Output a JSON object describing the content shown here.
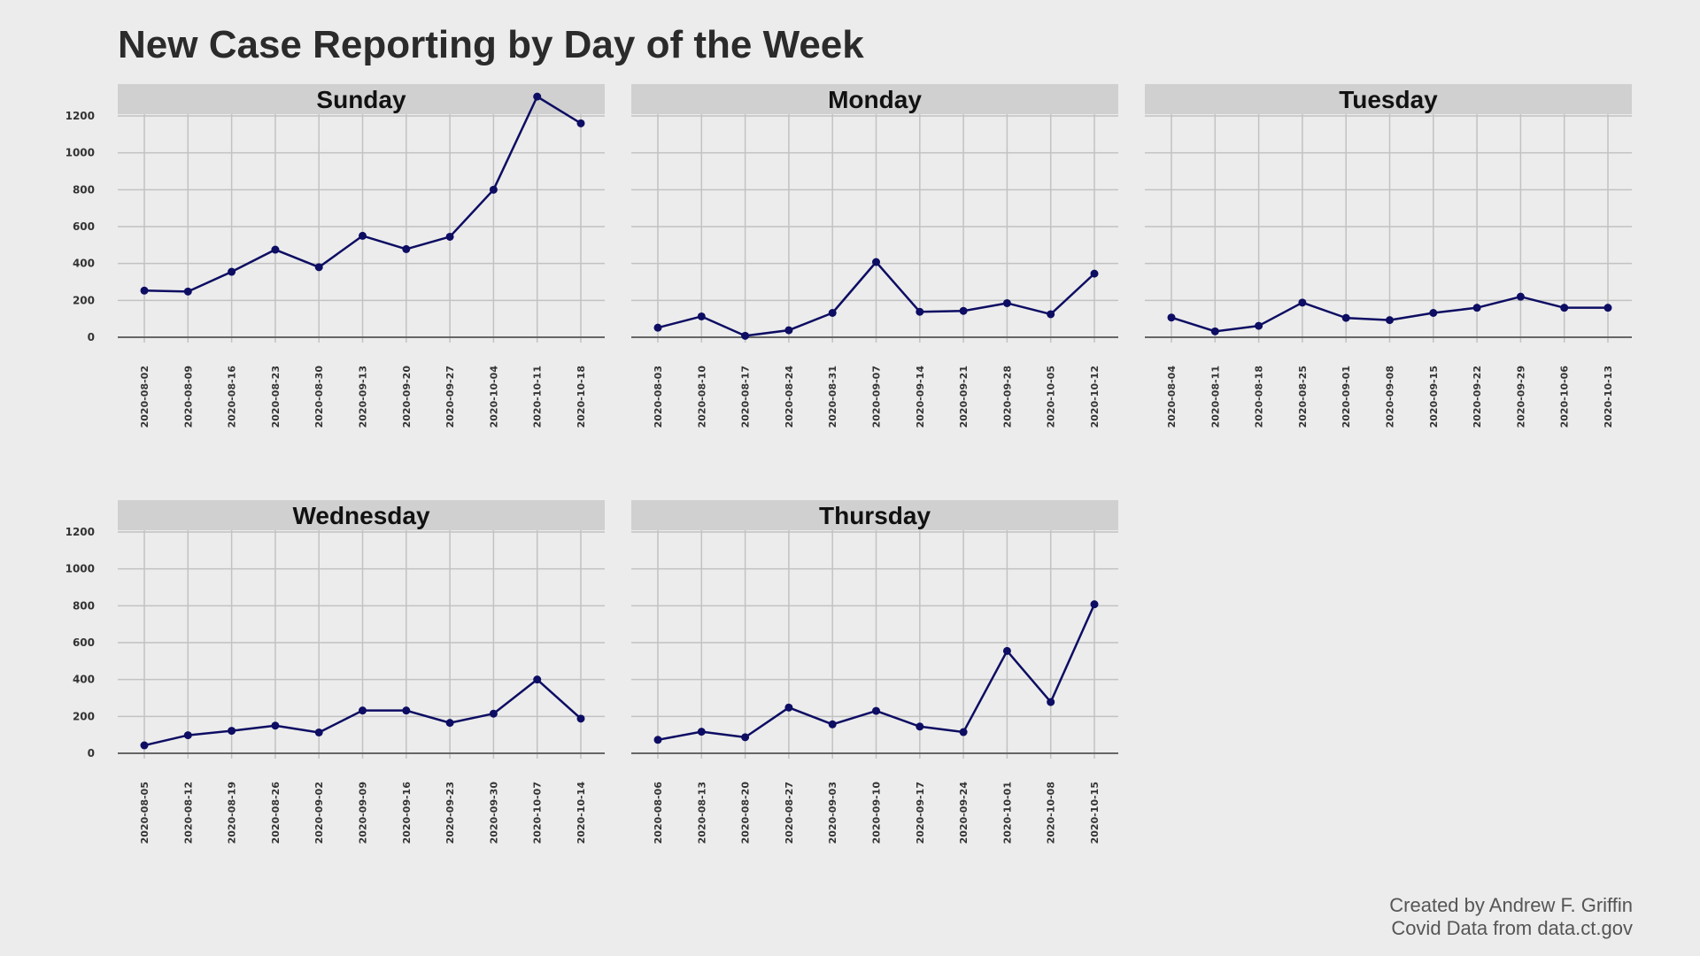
{
  "title": "New Case Reporting by Day of the Week",
  "caption": {
    "line1": "Created by Andrew F. Griffin",
    "line2": "Covid Data from data.ct.gov"
  },
  "colors": {
    "line": "#0d0d63",
    "point": "#0d0d63",
    "grid": "#c2c2c2",
    "strip": "#d0d0d0",
    "zero_line": "#666666",
    "background": "#ececec"
  },
  "chart_data": [
    {
      "type": "line",
      "panel": "Sunday",
      "x": [
        "2020-08-02",
        "2020-08-09",
        "2020-08-16",
        "2020-08-23",
        "2020-08-30",
        "2020-09-13",
        "2020-09-20",
        "2020-09-27",
        "2020-10-04",
        "2020-10-11",
        "2020-10-18"
      ],
      "values": [
        253,
        248,
        355,
        475,
        380,
        550,
        478,
        545,
        800,
        1305,
        1160
      ],
      "ylim": [
        0,
        1300
      ],
      "yticks": [
        0,
        200,
        400,
        600,
        800,
        1000,
        1200
      ],
      "grid": true
    },
    {
      "type": "line",
      "panel": "Monday",
      "x": [
        "2020-08-03",
        "2020-08-10",
        "2020-08-17",
        "2020-08-24",
        "2020-08-31",
        "2020-09-07",
        "2020-09-14",
        "2020-09-21",
        "2020-09-28",
        "2020-10-05",
        "2020-10-12"
      ],
      "values": [
        52,
        113,
        8,
        38,
        132,
        408,
        138,
        143,
        185,
        125,
        345
      ],
      "ylim": [
        0,
        1300
      ],
      "yticks": [
        0,
        200,
        400,
        600,
        800,
        1000,
        1200
      ],
      "grid": true
    },
    {
      "type": "line",
      "panel": "Tuesday",
      "x": [
        "2020-08-04",
        "2020-08-11",
        "2020-08-18",
        "2020-08-25",
        "2020-09-01",
        "2020-09-08",
        "2020-09-15",
        "2020-09-22",
        "2020-09-29",
        "2020-10-06",
        "2020-10-13"
      ],
      "values": [
        107,
        32,
        62,
        188,
        105,
        93,
        132,
        160,
        220,
        160,
        160
      ],
      "ylim": [
        0,
        1300
      ],
      "yticks": [
        0,
        200,
        400,
        600,
        800,
        1000,
        1200
      ],
      "grid": true
    },
    {
      "type": "line",
      "panel": "Wednesday",
      "x": [
        "2020-08-05",
        "2020-08-12",
        "2020-08-19",
        "2020-08-26",
        "2020-09-02",
        "2020-09-09",
        "2020-09-16",
        "2020-09-23",
        "2020-09-30",
        "2020-10-07",
        "2020-10-14"
      ],
      "values": [
        43,
        98,
        122,
        150,
        113,
        232,
        232,
        165,
        215,
        400,
        188
      ],
      "ylim": [
        0,
        1300
      ],
      "yticks": [
        0,
        200,
        400,
        600,
        800,
        1000,
        1200
      ],
      "grid": true
    },
    {
      "type": "line",
      "panel": "Thursday",
      "x": [
        "2020-08-06",
        "2020-08-13",
        "2020-08-20",
        "2020-08-27",
        "2020-09-03",
        "2020-09-10",
        "2020-09-17",
        "2020-09-24",
        "2020-10-01",
        "2020-10-08",
        "2020-10-15"
      ],
      "values": [
        73,
        117,
        87,
        248,
        157,
        230,
        145,
        115,
        555,
        278,
        808
      ],
      "ylim": [
        0,
        1300
      ],
      "yticks": [
        0,
        200,
        400,
        600,
        800,
        1000,
        1200
      ],
      "grid": true
    }
  ]
}
